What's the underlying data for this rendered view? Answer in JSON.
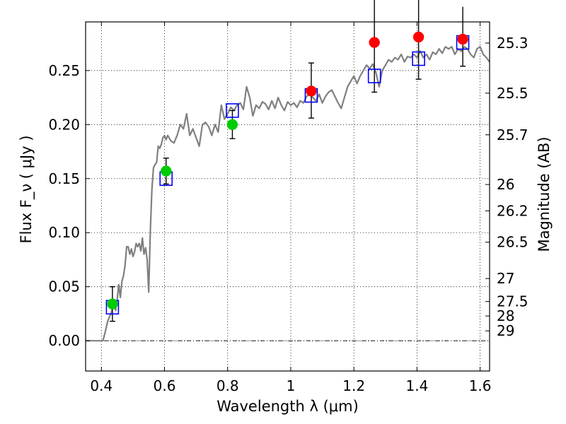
{
  "chart_data": {
    "type": "scatter",
    "xlabel": "Wavelength  λ (μm)",
    "ylabel_left": "Flux  F_ν  ( μJy )",
    "ylabel_right": "Magnitude (AB)",
    "xlim": [
      0.35,
      1.63
    ],
    "ylim": [
      -0.028,
      0.295
    ],
    "grid": true,
    "x_ticks": [
      {
        "value": 0.4,
        "label": "0.4"
      },
      {
        "value": 0.6,
        "label": "0.6"
      },
      {
        "value": 0.8,
        "label": "0.8"
      },
      {
        "value": 1.0,
        "label": "1"
      },
      {
        "value": 1.2,
        "label": "1.2"
      },
      {
        "value": 1.4,
        "label": "1.4"
      },
      {
        "value": 1.6,
        "label": "1.6"
      }
    ],
    "y_ticks": [
      {
        "value": 0.0,
        "label": "0.00"
      },
      {
        "value": 0.05,
        "label": "0.05"
      },
      {
        "value": 0.1,
        "label": "0.10"
      },
      {
        "value": 0.15,
        "label": "0.15"
      },
      {
        "value": 0.2,
        "label": "0.20"
      },
      {
        "value": 0.25,
        "label": "0.25"
      }
    ],
    "right_ticks": [
      {
        "value": 25.3,
        "label": "25.3"
      },
      {
        "value": 25.5,
        "label": "25.5"
      },
      {
        "value": 25.7,
        "label": "25.7"
      },
      {
        "value": 26,
        "label": "26"
      },
      {
        "value": 26.2,
        "label": "26.2"
      },
      {
        "value": 26.5,
        "label": "26.5"
      },
      {
        "value": 27,
        "label": "27"
      },
      {
        "value": 27.5,
        "label": "27.5"
      },
      {
        "value": 28,
        "label": "28"
      },
      {
        "value": 29,
        "label": "29"
      }
    ],
    "colors": {
      "sed_line": "#808080",
      "model_box": "#0000ff",
      "green_point": "#00cc00",
      "red_point": "#ff0000",
      "errorbar": "#000000"
    },
    "series": [
      {
        "kind": "line",
        "points": [
          [
            0.35,
            0.0
          ],
          [
            0.405,
            0.0
          ],
          [
            0.412,
            0.008
          ],
          [
            0.42,
            0.018
          ],
          [
            0.43,
            0.025
          ],
          [
            0.435,
            0.03
          ],
          [
            0.44,
            0.036
          ],
          [
            0.445,
            0.028
          ],
          [
            0.45,
            0.038
          ],
          [
            0.455,
            0.052
          ],
          [
            0.46,
            0.04
          ],
          [
            0.465,
            0.055
          ],
          [
            0.47,
            0.06
          ],
          [
            0.475,
            0.07
          ],
          [
            0.48,
            0.087
          ],
          [
            0.485,
            0.087
          ],
          [
            0.49,
            0.08
          ],
          [
            0.495,
            0.085
          ],
          [
            0.5,
            0.078
          ],
          [
            0.505,
            0.082
          ],
          [
            0.51,
            0.09
          ],
          [
            0.515,
            0.087
          ],
          [
            0.52,
            0.09
          ],
          [
            0.525,
            0.083
          ],
          [
            0.53,
            0.095
          ],
          [
            0.535,
            0.08
          ],
          [
            0.54,
            0.086
          ],
          [
            0.545,
            0.075
          ],
          [
            0.55,
            0.045
          ],
          [
            0.555,
            0.1
          ],
          [
            0.56,
            0.14
          ],
          [
            0.565,
            0.16
          ],
          [
            0.57,
            0.163
          ],
          [
            0.575,
            0.165
          ],
          [
            0.58,
            0.18
          ],
          [
            0.585,
            0.178
          ],
          [
            0.59,
            0.182
          ],
          [
            0.595,
            0.188
          ],
          [
            0.6,
            0.19
          ],
          [
            0.605,
            0.186
          ],
          [
            0.61,
            0.19
          ],
          [
            0.62,
            0.185
          ],
          [
            0.63,
            0.183
          ],
          [
            0.64,
            0.19
          ],
          [
            0.65,
            0.2
          ],
          [
            0.66,
            0.196
          ],
          [
            0.67,
            0.21
          ],
          [
            0.68,
            0.19
          ],
          [
            0.69,
            0.196
          ],
          [
            0.7,
            0.188
          ],
          [
            0.71,
            0.18
          ],
          [
            0.72,
            0.2
          ],
          [
            0.73,
            0.202
          ],
          [
            0.74,
            0.198
          ],
          [
            0.75,
            0.19
          ],
          [
            0.76,
            0.2
          ],
          [
            0.77,
            0.193
          ],
          [
            0.78,
            0.218
          ],
          [
            0.79,
            0.205
          ],
          [
            0.8,
            0.21
          ],
          [
            0.81,
            0.216
          ],
          [
            0.82,
            0.213
          ],
          [
            0.83,
            0.218
          ],
          [
            0.84,
            0.22
          ],
          [
            0.85,
            0.214
          ],
          [
            0.86,
            0.235
          ],
          [
            0.87,
            0.225
          ],
          [
            0.88,
            0.208
          ],
          [
            0.89,
            0.218
          ],
          [
            0.9,
            0.215
          ],
          [
            0.91,
            0.221
          ],
          [
            0.92,
            0.219
          ],
          [
            0.93,
            0.214
          ],
          [
            0.94,
            0.222
          ],
          [
            0.95,
            0.215
          ],
          [
            0.96,
            0.225
          ],
          [
            0.97,
            0.218
          ],
          [
            0.98,
            0.213
          ],
          [
            0.99,
            0.221
          ],
          [
            1.0,
            0.218
          ],
          [
            1.01,
            0.22
          ],
          [
            1.02,
            0.216
          ],
          [
            1.03,
            0.222
          ],
          [
            1.04,
            0.22
          ],
          [
            1.05,
            0.226
          ],
          [
            1.06,
            0.228
          ],
          [
            1.07,
            0.225
          ],
          [
            1.08,
            0.222
          ],
          [
            1.09,
            0.228
          ],
          [
            1.1,
            0.22
          ],
          [
            1.11,
            0.226
          ],
          [
            1.12,
            0.23
          ],
          [
            1.13,
            0.232
          ],
          [
            1.14,
            0.226
          ],
          [
            1.15,
            0.22
          ],
          [
            1.16,
            0.215
          ],
          [
            1.17,
            0.225
          ],
          [
            1.18,
            0.235
          ],
          [
            1.19,
            0.24
          ],
          [
            1.2,
            0.245
          ],
          [
            1.21,
            0.238
          ],
          [
            1.22,
            0.245
          ],
          [
            1.23,
            0.25
          ],
          [
            1.24,
            0.255
          ],
          [
            1.25,
            0.252
          ],
          [
            1.26,
            0.256
          ],
          [
            1.27,
            0.248
          ],
          [
            1.28,
            0.235
          ],
          [
            1.29,
            0.25
          ],
          [
            1.3,
            0.255
          ],
          [
            1.31,
            0.26
          ],
          [
            1.32,
            0.258
          ],
          [
            1.33,
            0.262
          ],
          [
            1.34,
            0.26
          ],
          [
            1.35,
            0.265
          ],
          [
            1.36,
            0.258
          ],
          [
            1.37,
            0.263
          ],
          [
            1.38,
            0.262
          ],
          [
            1.39,
            0.265
          ],
          [
            1.4,
            0.262
          ],
          [
            1.41,
            0.268
          ],
          [
            1.42,
            0.262
          ],
          [
            1.43,
            0.265
          ],
          [
            1.44,
            0.26
          ],
          [
            1.45,
            0.267
          ],
          [
            1.46,
            0.265
          ],
          [
            1.47,
            0.27
          ],
          [
            1.48,
            0.266
          ],
          [
            1.49,
            0.272
          ],
          [
            1.5,
            0.27
          ],
          [
            1.51,
            0.272
          ],
          [
            1.52,
            0.265
          ],
          [
            1.53,
            0.27
          ],
          [
            1.54,
            0.268
          ],
          [
            1.55,
            0.272
          ],
          [
            1.56,
            0.27
          ],
          [
            1.57,
            0.265
          ],
          [
            1.58,
            0.262
          ],
          [
            1.59,
            0.27
          ],
          [
            1.6,
            0.272
          ],
          [
            1.61,
            0.265
          ],
          [
            1.62,
            0.262
          ],
          [
            1.63,
            0.258
          ]
        ]
      },
      {
        "kind": "model_boxes",
        "points": [
          [
            0.435,
            0.031
          ],
          [
            0.605,
            0.15
          ],
          [
            0.815,
            0.213
          ],
          [
            1.065,
            0.227
          ],
          [
            1.265,
            0.245
          ],
          [
            1.405,
            0.261
          ],
          [
            1.545,
            0.276
          ]
        ]
      },
      {
        "kind": "green_points",
        "points": [
          {
            "x": 0.435,
            "y": 0.034,
            "yerr": [
              0.016,
              0.016
            ]
          },
          {
            "x": 0.605,
            "y": 0.157,
            "yerr": [
              0.012,
              0.012
            ]
          },
          {
            "x": 0.815,
            "y": 0.2,
            "yerr": [
              0.013,
              0.013
            ]
          }
        ]
      },
      {
        "kind": "red_points",
        "points": [
          {
            "x": 1.065,
            "y": 0.231,
            "yerr": [
              0.025,
              0.026
            ]
          },
          {
            "x": 1.265,
            "y": 0.276,
            "yerr": [
              0.046,
              0.05
            ]
          },
          {
            "x": 1.405,
            "y": 0.281,
            "yerr": [
              0.039,
              0.04
            ]
          },
          {
            "x": 1.545,
            "y": 0.279,
            "yerr": [
              0.025,
              0.03
            ]
          }
        ]
      }
    ]
  }
}
